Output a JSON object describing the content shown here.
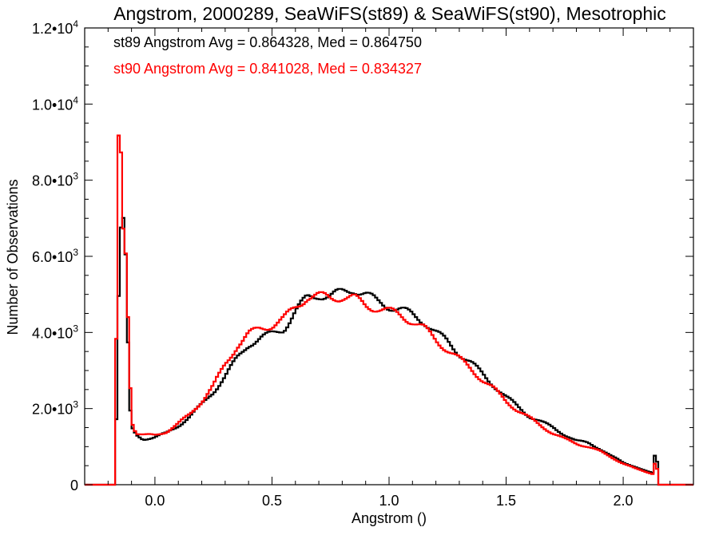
{
  "chart_data": {
    "type": "line",
    "title": "Angstrom, 2000289, SeaWiFS(st89) & SeaWiFS(st90), Mesotrophic",
    "xlabel": "Angstrom ()",
    "ylabel": "Number of Observations",
    "xlim": [
      -0.3,
      2.3
    ],
    "ylim": [
      0,
      12000
    ],
    "xticks": [
      0.0,
      0.5,
      1.0,
      1.5,
      2.0
    ],
    "xtick_labels": [
      "0.0",
      "0.5",
      "1.0",
      "1.5",
      "2.0"
    ],
    "yticks": [
      0,
      2000,
      4000,
      6000,
      8000,
      10000,
      12000
    ],
    "ytick_labels": [
      {
        "mant": "0",
        "exp": ""
      },
      {
        "mant": "2.0•1",
        "exp": "3"
      },
      {
        "mant": "4.0•1",
        "exp": "3"
      },
      {
        "mant": "6.0•1",
        "exp": "3"
      },
      {
        "mant": "8.0•1",
        "exp": "3"
      },
      {
        "mant": "1.0•1",
        "exp": "4"
      },
      {
        "mant": "1.2•1",
        "exp": "4"
      }
    ],
    "annotations": [
      {
        "text": "st89 Angstrom Avg = 0.864328, Med = 0.864750",
        "color": "#000000"
      },
      {
        "text": "st90 Angstrom Avg = 0.841028, Med = 0.834327",
        "color": "#ff0000"
      }
    ],
    "bin_width": 0.01,
    "series": [
      {
        "color": "#000000",
        "points": [
          [
            -0.3,
            0
          ],
          [
            -0.17,
            0
          ],
          [
            -0.16,
            3500
          ],
          [
            -0.15,
            6500
          ],
          [
            -0.14,
            7000
          ],
          [
            -0.13,
            6900
          ],
          [
            -0.12,
            5000
          ],
          [
            -0.11,
            2300
          ],
          [
            -0.1,
            1500
          ],
          [
            -0.08,
            1300
          ],
          [
            -0.05,
            1200
          ],
          [
            0.0,
            1250
          ],
          [
            0.05,
            1350
          ],
          [
            0.1,
            1550
          ],
          [
            0.15,
            1800
          ],
          [
            0.2,
            2100
          ],
          [
            0.25,
            2450
          ],
          [
            0.3,
            2850
          ],
          [
            0.35,
            3300
          ],
          [
            0.4,
            3700
          ],
          [
            0.45,
            3850
          ],
          [
            0.5,
            3950
          ],
          [
            0.55,
            4100
          ],
          [
            0.6,
            4550
          ],
          [
            0.65,
            4900
          ],
          [
            0.7,
            5000
          ],
          [
            0.75,
            4950
          ],
          [
            0.8,
            5050
          ],
          [
            0.85,
            5150
          ],
          [
            0.9,
            5000
          ],
          [
            0.95,
            4800
          ],
          [
            1.0,
            4700
          ],
          [
            1.05,
            4600
          ],
          [
            1.1,
            4450
          ],
          [
            1.15,
            4300
          ],
          [
            1.2,
            4000
          ],
          [
            1.25,
            3750
          ],
          [
            1.3,
            3450
          ],
          [
            1.35,
            3200
          ],
          [
            1.4,
            2900
          ],
          [
            1.45,
            2600
          ],
          [
            1.5,
            2300
          ],
          [
            1.55,
            2050
          ],
          [
            1.6,
            1800
          ],
          [
            1.65,
            1650
          ],
          [
            1.7,
            1500
          ],
          [
            1.75,
            1320
          ],
          [
            1.8,
            1150
          ],
          [
            1.85,
            1100
          ],
          [
            1.9,
            950
          ],
          [
            1.95,
            750
          ],
          [
            2.0,
            580
          ],
          [
            2.05,
            480
          ],
          [
            2.1,
            350
          ],
          [
            2.13,
            300
          ],
          [
            2.14,
            1200
          ],
          [
            2.15,
            0
          ],
          [
            2.3,
            0
          ]
        ]
      },
      {
        "color": "#ff0000",
        "points": [
          [
            -0.3,
            0
          ],
          [
            -0.17,
            0
          ],
          [
            -0.16,
            7500
          ],
          [
            -0.15,
            10700
          ],
          [
            -0.14,
            6700
          ],
          [
            -0.13,
            6800
          ],
          [
            -0.12,
            5500
          ],
          [
            -0.11,
            3500
          ],
          [
            -0.1,
            1700
          ],
          [
            -0.08,
            1350
          ],
          [
            -0.05,
            1300
          ],
          [
            0.0,
            1300
          ],
          [
            0.05,
            1400
          ],
          [
            0.1,
            1600
          ],
          [
            0.15,
            1850
          ],
          [
            0.2,
            2200
          ],
          [
            0.25,
            2600
          ],
          [
            0.3,
            3150
          ],
          [
            0.35,
            3650
          ],
          [
            0.4,
            3950
          ],
          [
            0.45,
            4100
          ],
          [
            0.5,
            4200
          ],
          [
            0.55,
            4350
          ],
          [
            0.6,
            4650
          ],
          [
            0.65,
            4950
          ],
          [
            0.7,
            4950
          ],
          [
            0.75,
            4900
          ],
          [
            0.8,
            4950
          ],
          [
            0.85,
            4900
          ],
          [
            0.9,
            4700
          ],
          [
            0.95,
            4650
          ],
          [
            1.0,
            4550
          ],
          [
            1.05,
            4450
          ],
          [
            1.1,
            4300
          ],
          [
            1.15,
            4100
          ],
          [
            1.2,
            3800
          ],
          [
            1.25,
            3550
          ],
          [
            1.3,
            3300
          ],
          [
            1.35,
            3050
          ],
          [
            1.4,
            2750
          ],
          [
            1.45,
            2500
          ],
          [
            1.5,
            2200
          ],
          [
            1.55,
            1950
          ],
          [
            1.6,
            1750
          ],
          [
            1.65,
            1550
          ],
          [
            1.7,
            1350
          ],
          [
            1.75,
            1200
          ],
          [
            1.8,
            1080
          ],
          [
            1.85,
            1000
          ],
          [
            1.9,
            880
          ],
          [
            1.95,
            720
          ],
          [
            2.0,
            560
          ],
          [
            2.05,
            430
          ],
          [
            2.1,
            330
          ],
          [
            2.13,
            280
          ],
          [
            2.14,
            850
          ],
          [
            2.15,
            0
          ],
          [
            2.3,
            0
          ]
        ]
      }
    ]
  }
}
